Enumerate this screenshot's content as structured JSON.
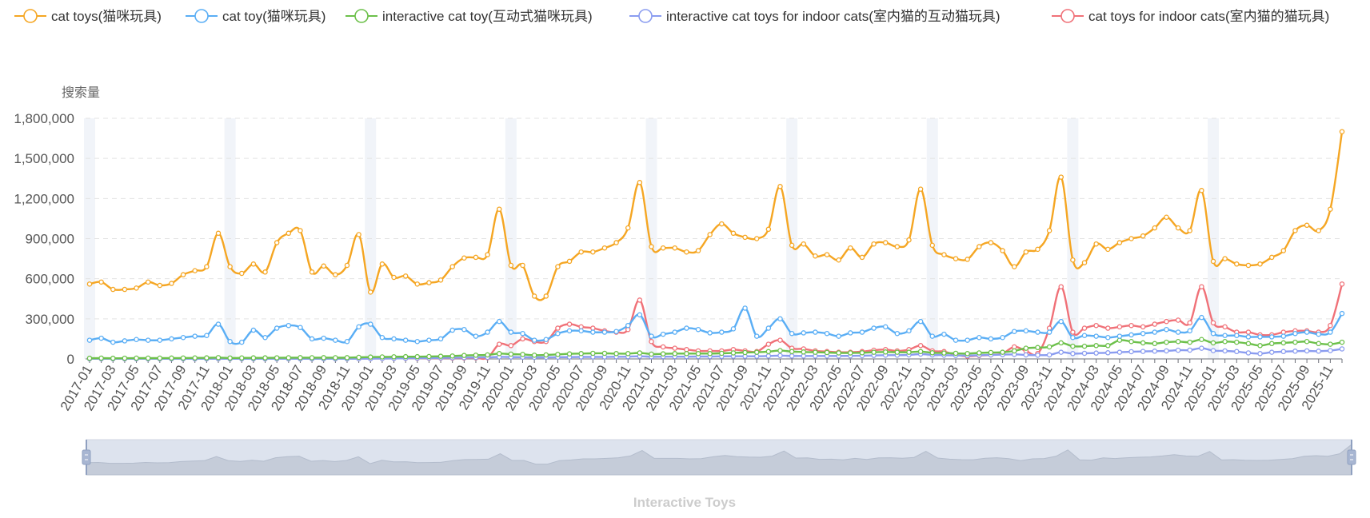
{
  "chart_data": {
    "type": "line",
    "title": "",
    "subtitle": "Interactive Toys",
    "ylabel": "搜索量",
    "xlabel": "",
    "ylim": [
      0,
      1800000
    ],
    "y_ticks": [
      0,
      300000,
      600000,
      900000,
      1200000,
      1500000,
      1800000
    ],
    "y_tick_labels": [
      "0",
      "300,000",
      "600,000",
      "900,000",
      "1,200,000",
      "1,500,000",
      "1,800,000"
    ],
    "x_start": "2017-01",
    "x_count": 108,
    "x_label_every": 2,
    "highlight_months": [
      "2017-01",
      "2018-01",
      "2019-01",
      "2020-01",
      "2021-01",
      "2022-01",
      "2023-01",
      "2024-01",
      "2025-01"
    ],
    "legend_position": "top",
    "grid": true,
    "datazoom": true,
    "colors": [
      "#f5a623",
      "#5aaef5",
      "#6cc04a",
      "#8a9cf0",
      "#f07178"
    ],
    "series": [
      {
        "name": "cat toys(猫咪玩具)",
        "values": [
          560000,
          575000,
          520000,
          520000,
          530000,
          575000,
          550000,
          565000,
          630000,
          660000,
          690000,
          940000,
          690000,
          640000,
          710000,
          650000,
          870000,
          940000,
          960000,
          650000,
          695000,
          630000,
          700000,
          930000,
          500000,
          710000,
          610000,
          620000,
          560000,
          570000,
          590000,
          690000,
          755000,
          760000,
          780000,
          1120000,
          700000,
          700000,
          470000,
          470000,
          690000,
          730000,
          800000,
          800000,
          830000,
          870000,
          980000,
          1320000,
          840000,
          830000,
          830000,
          800000,
          810000,
          930000,
          1010000,
          940000,
          910000,
          900000,
          970000,
          1290000,
          850000,
          860000,
          770000,
          780000,
          740000,
          830000,
          760000,
          860000,
          870000,
          840000,
          890000,
          1270000,
          850000,
          780000,
          750000,
          745000,
          840000,
          870000,
          810000,
          690000,
          800000,
          820000,
          960000,
          1360000,
          740000,
          720000,
          860000,
          820000,
          870000,
          900000,
          920000,
          980000,
          1060000,
          980000,
          960000,
          1260000,
          730000,
          750000,
          710000,
          700000,
          710000,
          760000,
          810000,
          960000,
          1000000,
          960000,
          1120000,
          1700000
        ]
      },
      {
        "name": "cat toy(猫咪玩具)",
        "values": [
          140000,
          155000,
          125000,
          135000,
          145000,
          140000,
          140000,
          150000,
          160000,
          170000,
          175000,
          260000,
          130000,
          125000,
          215000,
          160000,
          230000,
          250000,
          235000,
          150000,
          155000,
          140000,
          130000,
          240000,
          260000,
          160000,
          150000,
          140000,
          130000,
          140000,
          150000,
          215000,
          220000,
          170000,
          200000,
          280000,
          200000,
          190000,
          140000,
          145000,
          190000,
          210000,
          210000,
          200000,
          200000,
          205000,
          250000,
          330000,
          170000,
          185000,
          200000,
          230000,
          220000,
          195000,
          200000,
          225000,
          380000,
          170000,
          230000,
          300000,
          190000,
          195000,
          200000,
          190000,
          170000,
          195000,
          200000,
          230000,
          240000,
          190000,
          210000,
          280000,
          170000,
          185000,
          140000,
          140000,
          160000,
          150000,
          160000,
          205000,
          210000,
          200000,
          200000,
          280000,
          160000,
          175000,
          170000,
          160000,
          170000,
          180000,
          190000,
          200000,
          220000,
          200000,
          210000,
          310000,
          190000,
          175000,
          175000,
          165000,
          165000,
          165000,
          170000,
          190000,
          200000,
          185000,
          200000,
          340000
        ]
      },
      {
        "name": "interactive cat toy(互动式猫咪玩具)",
        "values": [
          5000,
          6000,
          5000,
          5500,
          6000,
          6000,
          6000,
          6500,
          7000,
          7500,
          8000,
          10000,
          7000,
          7500,
          8000,
          8000,
          8500,
          9000,
          9500,
          9000,
          9500,
          9000,
          9500,
          12000,
          14000,
          15000,
          16000,
          17000,
          17000,
          18000,
          20000,
          22000,
          26000,
          28000,
          30000,
          40000,
          36000,
          34000,
          28000,
          30000,
          34000,
          38000,
          40000,
          42000,
          42000,
          40000,
          40000,
          45000,
          36000,
          38000,
          40000,
          40000,
          40000,
          40000,
          42000,
          45000,
          48000,
          50000,
          55000,
          62000,
          55000,
          52000,
          50000,
          48000,
          45000,
          45000,
          46000,
          50000,
          52000,
          50000,
          50000,
          55000,
          46000,
          44000,
          42000,
          40000,
          45000,
          48000,
          50000,
          60000,
          80000,
          85000,
          90000,
          120000,
          95000,
          95000,
          100000,
          100000,
          140000,
          130000,
          120000,
          115000,
          125000,
          130000,
          125000,
          145000,
          120000,
          130000,
          125000,
          115000,
          100000,
          115000,
          120000,
          125000,
          130000,
          115000,
          110000,
          125000
        ]
      },
      {
        "name": "interactive cat toys for indoor cats(室内猫的互动猫玩具)",
        "values": [
          1000,
          1000,
          1000,
          1000,
          1000,
          1000,
          1000,
          1000,
          1000,
          1000,
          1000,
          1500,
          1000,
          1000,
          1000,
          1000,
          1000,
          1000,
          1000,
          1000,
          1000,
          1000,
          1000,
          1500,
          2000,
          3000,
          4000,
          5000,
          6000,
          7000,
          8000,
          9000,
          10000,
          11000,
          12000,
          15000,
          14000,
          13000,
          12000,
          12000,
          13000,
          14000,
          15000,
          15000,
          15000,
          16000,
          17000,
          20000,
          16000,
          17000,
          17000,
          17000,
          18000,
          18000,
          19000,
          20000,
          20000,
          20000,
          22000,
          25000,
          22000,
          22000,
          22000,
          22000,
          22000,
          23000,
          24000,
          26000,
          28000,
          28000,
          30000,
          36000,
          30000,
          28000,
          26000,
          25000,
          28000,
          30000,
          32000,
          34000,
          30000,
          28000,
          30000,
          50000,
          40000,
          42000,
          44000,
          46000,
          50000,
          54000,
          56000,
          58000,
          60000,
          65000,
          66000,
          80000,
          62000,
          60000,
          55000,
          45000,
          40000,
          50000,
          55000,
          58000,
          60000,
          58000,
          62000,
          75000
        ]
      },
      {
        "name": "cat toys for indoor cats(室内猫的猫玩具)",
        "values": [
          2000,
          2000,
          2000,
          2000,
          2000,
          2000,
          2000,
          2000,
          2000,
          2000,
          2000,
          2500,
          2000,
          2000,
          2000,
          2000,
          2000,
          2000,
          2000,
          2000,
          2000,
          2000,
          2000,
          2500,
          3000,
          3500,
          4000,
          4500,
          5000,
          5500,
          6000,
          6500,
          7000,
          8000,
          9000,
          110000,
          100000,
          150000,
          130000,
          130000,
          230000,
          260000,
          240000,
          230000,
          210000,
          200000,
          220000,
          440000,
          130000,
          90000,
          80000,
          70000,
          60000,
          60000,
          60000,
          70000,
          60000,
          55000,
          110000,
          140000,
          80000,
          75000,
          60000,
          55000,
          50000,
          50000,
          55000,
          65000,
          70000,
          60000,
          70000,
          100000,
          60000,
          55000,
          30000,
          20000,
          25000,
          30000,
          40000,
          90000,
          60000,
          40000,
          230000,
          540000,
          200000,
          230000,
          250000,
          230000,
          240000,
          250000,
          240000,
          260000,
          280000,
          290000,
          270000,
          540000,
          270000,
          240000,
          200000,
          200000,
          180000,
          180000,
          200000,
          210000,
          210000,
          200000,
          250000,
          560000
        ]
      }
    ]
  }
}
